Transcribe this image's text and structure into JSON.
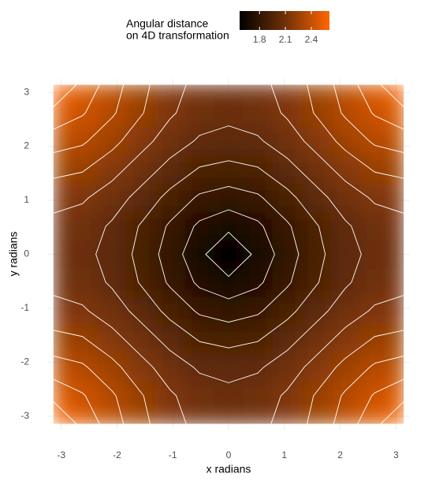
{
  "chart_data": {
    "type": "heatmap",
    "legend_title": [
      "Angular distance",
      "on 4D transformation"
    ],
    "xlabel": "x radians",
    "ylabel": "y radians",
    "x": [
      -3.14,
      -2.62,
      -2.09,
      -1.57,
      -1.05,
      -0.52,
      0,
      0.52,
      1.05,
      1.57,
      2.09,
      2.62,
      3.14
    ],
    "y": [
      -3.14,
      -2.62,
      -2.09,
      -1.57,
      -1.05,
      -0.52,
      0,
      0.52,
      1.05,
      1.57,
      2.09,
      2.62,
      3.14
    ],
    "z": [
      [
        2.61,
        2.49,
        2.37,
        2.26,
        2.17,
        2.11,
        2.09,
        2.11,
        2.17,
        2.26,
        2.37,
        2.49,
        2.61
      ],
      [
        2.49,
        2.43,
        2.34,
        2.24,
        2.15,
        2.09,
        2.07,
        2.09,
        2.15,
        2.24,
        2.34,
        2.43,
        2.49
      ],
      [
        2.37,
        2.34,
        2.26,
        2.17,
        2.09,
        2.03,
        2.01,
        2.03,
        2.09,
        2.17,
        2.26,
        2.34,
        2.37
      ],
      [
        2.26,
        2.24,
        2.17,
        2.09,
        2.01,
        1.94,
        1.92,
        1.94,
        2.01,
        2.09,
        2.17,
        2.24,
        2.26
      ],
      [
        2.17,
        2.15,
        2.09,
        2.01,
        1.92,
        1.84,
        1.81,
        1.84,
        1.92,
        2.01,
        2.09,
        2.15,
        2.17
      ],
      [
        2.11,
        2.09,
        2.03,
        1.94,
        1.84,
        1.74,
        1.69,
        1.74,
        1.84,
        1.94,
        2.03,
        2.09,
        2.11
      ],
      [
        2.09,
        2.07,
        2.01,
        1.92,
        1.81,
        1.69,
        1.57,
        1.69,
        1.81,
        1.92,
        2.01,
        2.07,
        2.09
      ],
      [
        2.11,
        2.09,
        2.03,
        1.94,
        1.84,
        1.74,
        1.69,
        1.74,
        1.84,
        1.94,
        2.03,
        2.09,
        2.11
      ],
      [
        2.17,
        2.15,
        2.09,
        2.01,
        1.92,
        1.84,
        1.81,
        1.84,
        1.92,
        2.01,
        2.09,
        2.15,
        2.17
      ],
      [
        2.26,
        2.24,
        2.17,
        2.09,
        2.01,
        1.94,
        1.92,
        1.94,
        2.01,
        2.09,
        2.17,
        2.24,
        2.26
      ],
      [
        2.37,
        2.34,
        2.26,
        2.17,
        2.09,
        2.03,
        2.01,
        2.03,
        2.09,
        2.17,
        2.26,
        2.34,
        2.37
      ],
      [
        2.49,
        2.43,
        2.34,
        2.24,
        2.15,
        2.09,
        2.07,
        2.09,
        2.15,
        2.24,
        2.34,
        2.43,
        2.49
      ],
      [
        2.61,
        2.49,
        2.37,
        2.26,
        2.17,
        2.11,
        2.09,
        2.11,
        2.17,
        2.26,
        2.37,
        2.49,
        2.61
      ]
    ],
    "colorscale": [
      "#000000",
      "#6e3008",
      "#ff6600"
    ],
    "xlim": [
      -3.25,
      3.25
    ],
    "ylim": [
      -3.25,
      3.25
    ],
    "xticks": [
      -3,
      -2,
      -1,
      0,
      1,
      2,
      3
    ],
    "yticks": [
      -3,
      -2,
      -1,
      0,
      1,
      2,
      3
    ],
    "colorbar_ticks": [
      1.8,
      2.1,
      2.4
    ],
    "contours": true,
    "grid": true,
    "legend_position": "top"
  }
}
